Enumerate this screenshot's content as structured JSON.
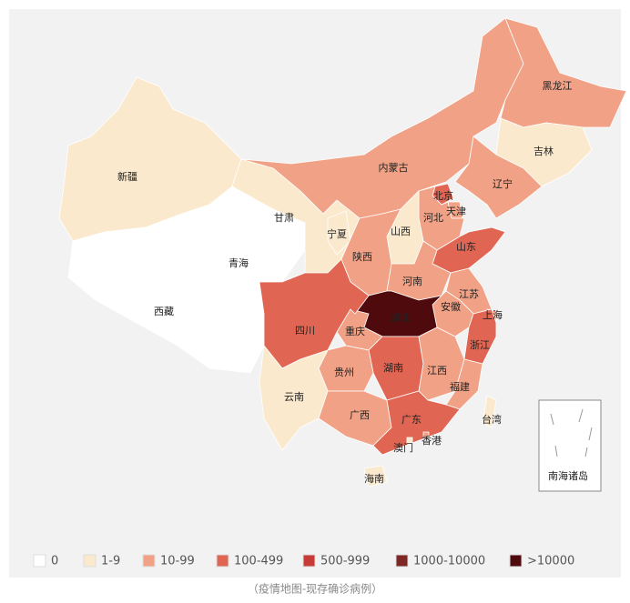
{
  "map": {
    "regions": [
      {
        "name": "新疆",
        "color": "#fbe9cd"
      },
      {
        "name": "西藏",
        "color": "#ffffff"
      },
      {
        "name": "青海",
        "color": "#ffffff"
      },
      {
        "name": "甘肃",
        "color": "#fbe9cd"
      },
      {
        "name": "宁夏",
        "color": "#fbe9cd"
      },
      {
        "name": "内蒙古",
        "color": "#f1a286"
      },
      {
        "name": "黑龙江",
        "color": "#f1a286"
      },
      {
        "name": "吉林",
        "color": "#fbe9cd"
      },
      {
        "name": "辽宁",
        "color": "#f1a286"
      },
      {
        "name": "北京",
        "color": "#e06552"
      },
      {
        "name": "天津",
        "color": "#f1a286"
      },
      {
        "name": "河北",
        "color": "#f1a286"
      },
      {
        "name": "山西",
        "color": "#fbe9cd"
      },
      {
        "name": "陕西",
        "color": "#f1a286"
      },
      {
        "name": "山东",
        "color": "#e06552"
      },
      {
        "name": "河南",
        "color": "#f1a286"
      },
      {
        "name": "江苏",
        "color": "#f1a286"
      },
      {
        "name": "安徽",
        "color": "#f1a286"
      },
      {
        "name": "上海",
        "color": "#f1a286"
      },
      {
        "name": "浙江",
        "color": "#e06552"
      },
      {
        "name": "湖北",
        "color": "#4f0a0d"
      },
      {
        "name": "重庆",
        "color": "#f1a286"
      },
      {
        "name": "四川",
        "color": "#e06552"
      },
      {
        "name": "湖南",
        "color": "#e06552"
      },
      {
        "name": "江西",
        "color": "#f1a286"
      },
      {
        "name": "福建",
        "color": "#f1a286"
      },
      {
        "name": "贵州",
        "color": "#f1a286"
      },
      {
        "name": "云南",
        "color": "#fbe9cd"
      },
      {
        "name": "广西",
        "color": "#f1a286"
      },
      {
        "name": "广东",
        "color": "#e06552"
      },
      {
        "name": "台湾",
        "color": "#fbe9cd"
      },
      {
        "name": "海南",
        "color": "#fbe9cd"
      },
      {
        "name": "香港",
        "color": "#f1a286"
      },
      {
        "name": "澳门",
        "color": "#fbe9cd"
      }
    ],
    "inset_label": "南海诸岛",
    "legend": [
      {
        "label": "0",
        "color": "#ffffff"
      },
      {
        "label": "1-9",
        "color": "#fbe9cd"
      },
      {
        "label": "10-99",
        "color": "#f1a286"
      },
      {
        "label": "100-499",
        "color": "#e06552"
      },
      {
        "label": "500-999",
        "color": "#c63b35"
      },
      {
        "label": "1000-10000",
        "color": "#7c2825"
      },
      {
        "label": ">10000",
        "color": "#4f0a0d"
      }
    ],
    "caption": "（疫情地图-现存确诊病例）"
  }
}
